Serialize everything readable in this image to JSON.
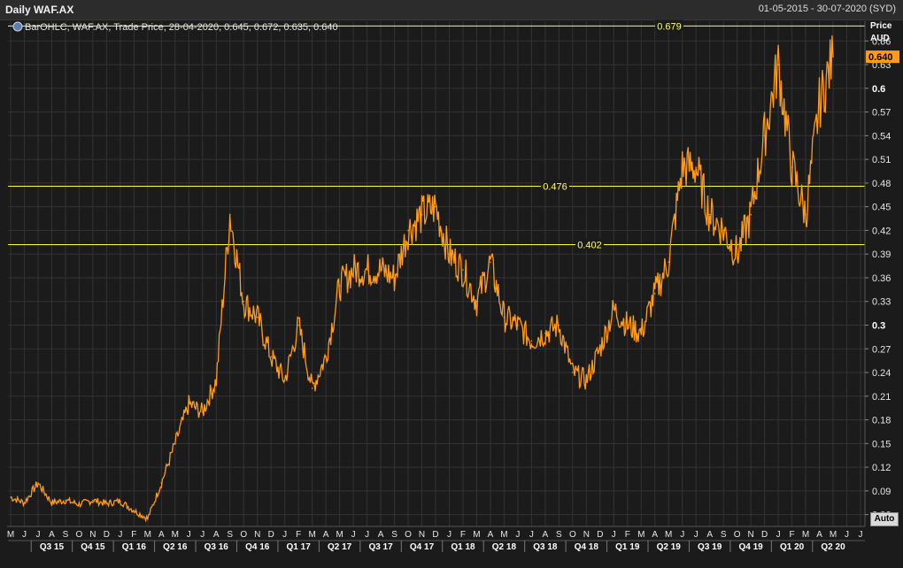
{
  "window": {
    "title": "Daily WAF.AX",
    "date_range": "01-05-2015 - 30-07-2020 (SYD)",
    "auto_button": "Auto"
  },
  "legend": {
    "text": "BarOHLC, WAF.AX, Trade Price, 28-04-2020, 0.645, 0.672, 0.635, 0.640"
  },
  "colors": {
    "background": "#1b1b1b",
    "grid": "#333333",
    "series": "#ff9a1a",
    "hlines": "#ffff33",
    "last_price_badge": "#ff9a1a"
  },
  "chart_data": {
    "type": "line",
    "title": "Daily WAF.AX",
    "ylabel": "Price",
    "yunit": "AUD",
    "ylim": [
      0.045,
      0.685
    ],
    "grid": true,
    "y_ticks": [
      0.06,
      0.09,
      0.12,
      0.15,
      0.18,
      0.21,
      0.24,
      0.27,
      0.3,
      0.33,
      0.36,
      0.39,
      0.42,
      0.45,
      0.48,
      0.51,
      0.54,
      0.57,
      0.6,
      0.63,
      0.66
    ],
    "y_ticks_bold": [
      0.3,
      0.6
    ],
    "y_tick_labels": [
      "0.06",
      "0.09",
      "0.12",
      "0.15",
      "0.18",
      "0.21",
      "0.24",
      "0.27",
      "0.3",
      "0.33",
      "0.36",
      "0.39",
      "0.42",
      "0.45",
      "0.48",
      "0.51",
      "0.54",
      "0.57",
      "0.6",
      "0.63",
      "0.66"
    ],
    "last_price": "0.640",
    "last_price_value": 0.64,
    "horizontal_lines": [
      {
        "value": 0.679,
        "label": "0.679"
      },
      {
        "value": 0.476,
        "label": "0.476"
      },
      {
        "value": 0.402,
        "label": "0.402"
      }
    ],
    "month_ticks": [
      "M",
      "J",
      "J",
      "A",
      "S",
      "O",
      "N",
      "D",
      "J",
      "F",
      "M",
      "A",
      "M",
      "J",
      "J",
      "A",
      "S",
      "O",
      "N",
      "D",
      "J",
      "F",
      "M",
      "A",
      "M",
      "J",
      "J",
      "A",
      "S",
      "O",
      "N",
      "D",
      "J",
      "F",
      "M",
      "A",
      "M",
      "J",
      "J",
      "A",
      "S",
      "O",
      "N",
      "D",
      "J",
      "F",
      "M",
      "A",
      "M",
      "J",
      "J",
      "A",
      "S",
      "O",
      "N",
      "D",
      "J",
      "F",
      "M",
      "A",
      "M",
      "J",
      "J"
    ],
    "quarter_ticks": [
      "Q3 15",
      "Q4 15",
      "Q1 16",
      "Q2 16",
      "Q3 16",
      "Q4 16",
      "Q1 17",
      "Q2 17",
      "Q3 17",
      "Q4 17",
      "Q1 18",
      "Q2 18",
      "Q3 18",
      "Q4 18",
      "Q1 19",
      "Q2 19",
      "Q3 19",
      "Q4 19",
      "Q1 20",
      "Q2 20"
    ],
    "series": [
      {
        "months": [
          0,
          1,
          2,
          3,
          4,
          5,
          6,
          7,
          8,
          9,
          10,
          11,
          12,
          13,
          14,
          15,
          16,
          17,
          18,
          19,
          20,
          21,
          22,
          23,
          24,
          25,
          26,
          27,
          28,
          29,
          30,
          31,
          32,
          33,
          34,
          35,
          36,
          37,
          38,
          39,
          40,
          41,
          42,
          43,
          44,
          45,
          46,
          47,
          48,
          49,
          50,
          51,
          52,
          53,
          54,
          55,
          56,
          57,
          58,
          59,
          60
        ],
        "values": [
          0.082,
          0.075,
          0.1,
          0.075,
          0.078,
          0.073,
          0.078,
          0.074,
          0.077,
          0.065,
          0.055,
          0.1,
          0.15,
          0.2,
          0.19,
          0.23,
          0.44,
          0.33,
          0.31,
          0.26,
          0.23,
          0.3,
          0.22,
          0.26,
          0.35,
          0.37,
          0.37,
          0.37,
          0.36,
          0.42,
          0.44,
          0.45,
          0.39,
          0.37,
          0.33,
          0.38,
          0.31,
          0.3,
          0.28,
          0.29,
          0.3,
          0.24,
          0.23,
          0.27,
          0.32,
          0.3,
          0.29,
          0.34,
          0.38,
          0.5,
          0.5,
          0.44,
          0.42,
          0.39,
          0.44,
          0.54,
          0.63,
          0.5,
          0.44,
          0.58,
          0.64
        ]
      }
    ]
  }
}
